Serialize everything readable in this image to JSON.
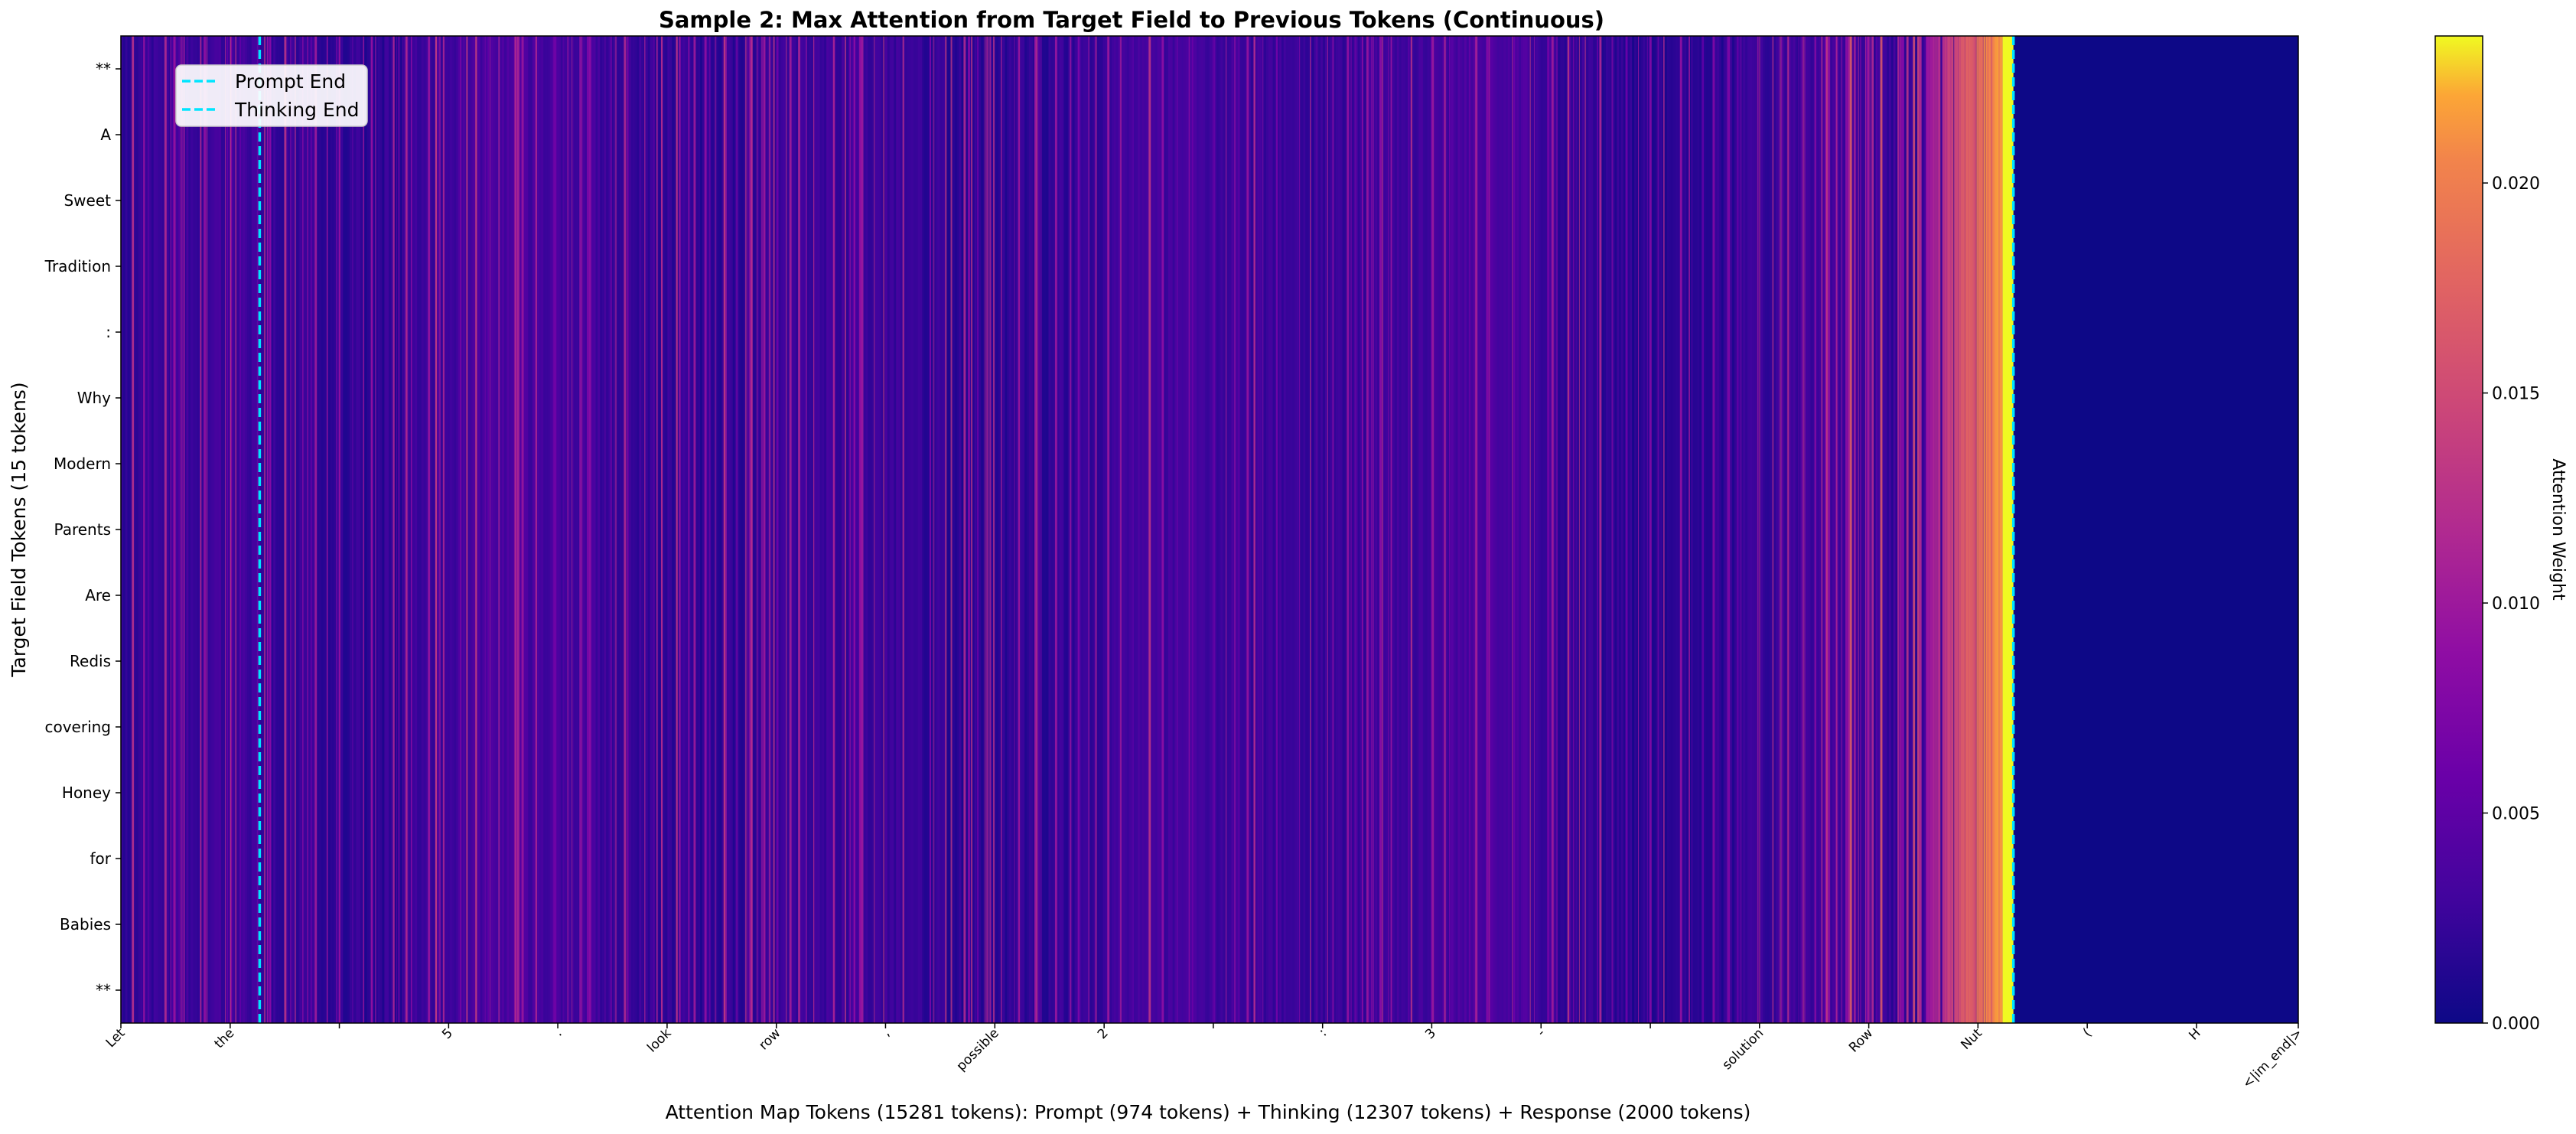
{
  "chart_data": {
    "type": "heatmap",
    "title": "Sample 2: Max Attention from Target Field to Previous Tokens (Continuous)",
    "xlabel": "Attention Map Tokens (15281 tokens): Prompt (974 tokens) + Thinking (12307 tokens) + Response (2000 tokens)",
    "ylabel": "Target Field Tokens (15 tokens)",
    "x_token_count": 15281,
    "prompt_end_index": 974,
    "thinking_end_index": 13281,
    "x_ticks": [
      {
        "index": 0,
        "label": "Let"
      },
      {
        "index": 767,
        "label": "the"
      },
      {
        "index": 1533,
        "label": ""
      },
      {
        "index": 2300,
        "label": "5"
      },
      {
        "index": 3066,
        "label": "."
      },
      {
        "index": 3833,
        "label": "look"
      },
      {
        "index": 4600,
        "label": "row"
      },
      {
        "index": 5366,
        "label": ","
      },
      {
        "index": 6133,
        "label": "possible"
      },
      {
        "index": 6900,
        "label": "2"
      },
      {
        "index": 7666,
        "label": ""
      },
      {
        "index": 8433,
        "label": ":"
      },
      {
        "index": 9199,
        "label": "3"
      },
      {
        "index": 9966,
        "label": "-"
      },
      {
        "index": 10733,
        "label": ""
      },
      {
        "index": 11499,
        "label": "solution"
      },
      {
        "index": 12266,
        "label": "Row"
      },
      {
        "index": 13032,
        "label": "Nut"
      },
      {
        "index": 13799,
        "label": "("
      },
      {
        "index": 14566,
        "label": "H"
      },
      {
        "index": 15280,
        "label": "<|im_end|>"
      }
    ],
    "y_tokens": [
      "**",
      "A",
      "Sweet",
      "Tradition",
      ":",
      "Why",
      "Modern",
      "Parents",
      "Are",
      "Redis",
      "covering",
      "Honey",
      "for",
      "Babies",
      "**"
    ],
    "colorbar": {
      "label": "Attention Weight",
      "colormap": "plasma",
      "vmin": 0.0,
      "vmax": 0.0235,
      "ticks": [
        "0.000",
        "0.005",
        "0.010",
        "0.015",
        "0.020"
      ],
      "tick_values": [
        0.0,
        0.005,
        0.01,
        0.015,
        0.02
      ]
    },
    "legend": {
      "placement": "upper-left",
      "entries": [
        {
          "label": "Prompt End",
          "color": "#00e5ff",
          "style": "dashed"
        },
        {
          "label": "Thinking End",
          "color": "#00e5ff",
          "style": "dashed"
        }
      ]
    },
    "summary_levels": {
      "prompt_region": 0.0022,
      "thinking_early": 0.0022,
      "thinking_late_peak": 0.0235,
      "response_region": 0.0
    }
  }
}
